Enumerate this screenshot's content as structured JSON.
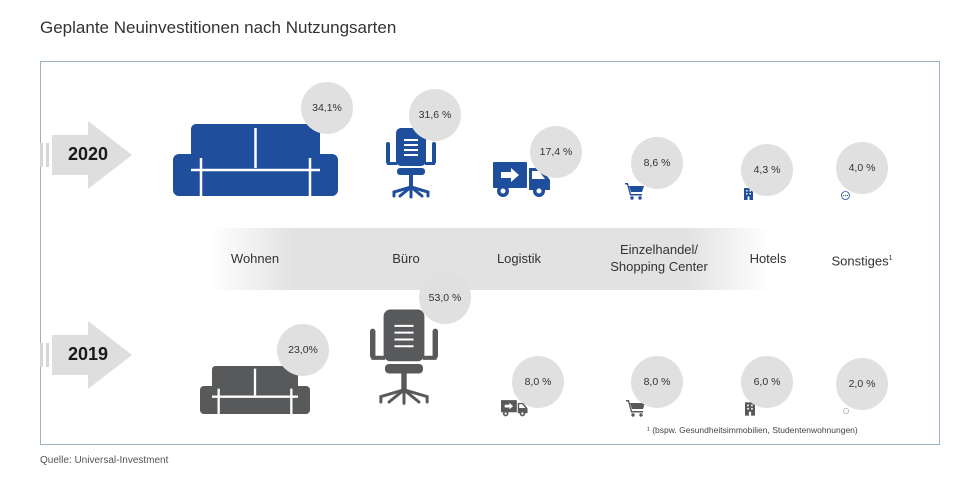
{
  "title": "Geplante Neuinvestitionen nach Nutzungsarten",
  "source": "Quelle: Universal-Investment",
  "footnote": "¹ (bspw. Gesundheitsimmobilien, Studentenwohnungen)",
  "colors": {
    "year_2020": "#1f4e9c",
    "year_2019": "#58595b",
    "bubble": "#e0e0e0",
    "frame": "#9db0c4"
  },
  "years": [
    "2020",
    "2019"
  ],
  "categories": [
    {
      "label": "Wohnen",
      "icon": "sofa-icon"
    },
    {
      "label": "Büro",
      "icon": "office-chair-icon"
    },
    {
      "label": "Logistik",
      "icon": "truck-icon"
    },
    {
      "label": "Einzelhandel/",
      "label2": "Shopping Center",
      "icon": "cart-icon"
    },
    {
      "label": "Hotels",
      "icon": "hotel-icon"
    },
    {
      "label": "Sonstiges",
      "sup": "1",
      "icon": "ellipsis-icon"
    }
  ],
  "labels_2020": [
    "34,1%",
    "31,6 %",
    "17,4 %",
    "8,6 %",
    "4,3 %",
    "4,0 %"
  ],
  "labels_2019": [
    "23,0%",
    "53,0 %",
    "8,0 %",
    "8,0 %",
    "6,0 %",
    "2,0 %"
  ],
  "chart_data": {
    "type": "bar",
    "title": "Geplante Neuinvestitionen nach Nutzungsarten",
    "categories": [
      "Wohnen",
      "Büro",
      "Logistik",
      "Einzelhandel/Shopping Center",
      "Hotels",
      "Sonstiges"
    ],
    "series": [
      {
        "name": "2020",
        "values": [
          34.1,
          31.6,
          17.4,
          8.6,
          4.3,
          4.0
        ]
      },
      {
        "name": "2019",
        "values": [
          23.0,
          53.0,
          8.0,
          8.0,
          6.0,
          2.0
        ]
      }
    ],
    "unit": "%"
  }
}
